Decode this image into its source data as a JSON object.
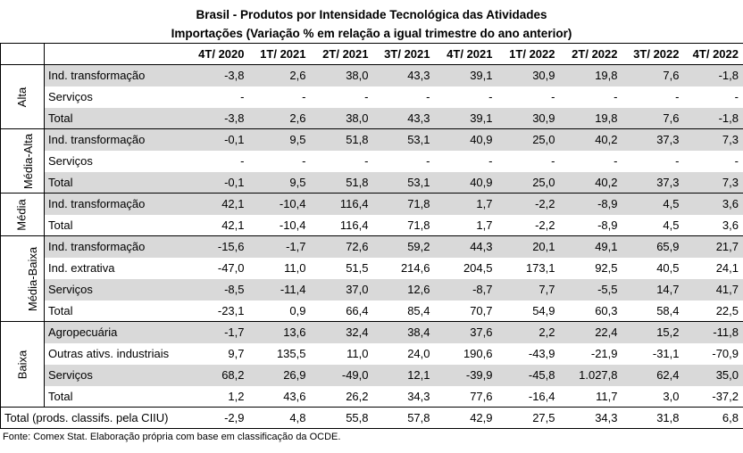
{
  "title_line1": "Brasil - Produtos por Intensidade Tecnológica das Atividades",
  "title_line2": "Importações (Variação % em relação a igual trimestre do ano anterior)",
  "columns": [
    "4T/ 2020",
    "1T/ 2021",
    "2T/ 2021",
    "3T/ 2021",
    "4T/ 2021",
    "1T/ 2022",
    "2T/ 2022",
    "3T/ 2022",
    "4T/ 2022"
  ],
  "groups": [
    {
      "name": "Alta",
      "rows": [
        {
          "label": "Ind. transformação",
          "values": [
            "-3,8",
            "2,6",
            "38,0",
            "43,3",
            "39,1",
            "30,9",
            "19,8",
            "7,6",
            "-1,8"
          ]
        },
        {
          "label": "Serviços",
          "values": [
            "-",
            "-",
            "-",
            "-",
            "-",
            "-",
            "-",
            "-",
            "-"
          ]
        },
        {
          "label": "Total",
          "values": [
            "-3,8",
            "2,6",
            "38,0",
            "43,3",
            "39,1",
            "30,9",
            "19,8",
            "7,6",
            "-1,8"
          ]
        }
      ]
    },
    {
      "name": "Média-Alta",
      "rows": [
        {
          "label": "Ind. transformação",
          "values": [
            "-0,1",
            "9,5",
            "51,8",
            "53,1",
            "40,9",
            "25,0",
            "40,2",
            "37,3",
            "7,3"
          ]
        },
        {
          "label": "Serviços",
          "values": [
            "-",
            "-",
            "-",
            "-",
            "-",
            "-",
            "-",
            "-",
            "-"
          ]
        },
        {
          "label": "Total",
          "values": [
            "-0,1",
            "9,5",
            "51,8",
            "53,1",
            "40,9",
            "25,0",
            "40,2",
            "37,3",
            "7,3"
          ]
        }
      ]
    },
    {
      "name": "Média",
      "rows": [
        {
          "label": "Ind. transformação",
          "values": [
            "42,1",
            "-10,4",
            "116,4",
            "71,8",
            "1,7",
            "-2,2",
            "-8,9",
            "4,5",
            "3,6"
          ]
        },
        {
          "label": "Total",
          "values": [
            "42,1",
            "-10,4",
            "116,4",
            "71,8",
            "1,7",
            "-2,2",
            "-8,9",
            "4,5",
            "3,6"
          ]
        }
      ]
    },
    {
      "name": "Média-Baixa",
      "rows": [
        {
          "label": "Ind. transformação",
          "values": [
            "-15,6",
            "-1,7",
            "72,6",
            "59,2",
            "44,3",
            "20,1",
            "49,1",
            "65,9",
            "21,7"
          ]
        },
        {
          "label": "Ind. extrativa",
          "values": [
            "-47,0",
            "11,0",
            "51,5",
            "214,6",
            "204,5",
            "173,1",
            "92,5",
            "40,5",
            "24,1"
          ]
        },
        {
          "label": "Serviços",
          "values": [
            "-8,5",
            "-11,4",
            "37,0",
            "12,6",
            "-8,7",
            "7,7",
            "-5,5",
            "14,7",
            "41,7"
          ]
        },
        {
          "label": "Total",
          "values": [
            "-23,1",
            "0,9",
            "66,4",
            "85,4",
            "70,7",
            "54,9",
            "60,3",
            "58,4",
            "22,5"
          ]
        }
      ]
    },
    {
      "name": "Baixa",
      "rows": [
        {
          "label": "Agropecuária",
          "values": [
            "-1,7",
            "13,6",
            "32,4",
            "38,4",
            "37,6",
            "2,2",
            "22,4",
            "15,2",
            "-11,8"
          ]
        },
        {
          "label": "Outras ativs. industriais",
          "values": [
            "9,7",
            "135,5",
            "11,0",
            "24,0",
            "190,6",
            "-43,9",
            "-21,9",
            "-31,1",
            "-70,9"
          ]
        },
        {
          "label": "Serviços",
          "values": [
            "68,2",
            "26,9",
            "-49,0",
            "12,1",
            "-39,9",
            "-45,8",
            "1.027,8",
            "62,4",
            "35,0"
          ]
        },
        {
          "label": "Total",
          "values": [
            "1,2",
            "43,6",
            "26,2",
            "34,3",
            "77,6",
            "-16,4",
            "11,7",
            "3,0",
            "-37,2"
          ]
        }
      ]
    }
  ],
  "grand_total": {
    "label": "Total (prods. classifs. pela CIIU)",
    "values": [
      "-2,9",
      "4,8",
      "55,8",
      "57,8",
      "42,9",
      "27,5",
      "34,3",
      "31,8",
      "6,8"
    ]
  },
  "source": "Fonte: Comex Stat. Elaboração própria com base em classificação da OCDE."
}
